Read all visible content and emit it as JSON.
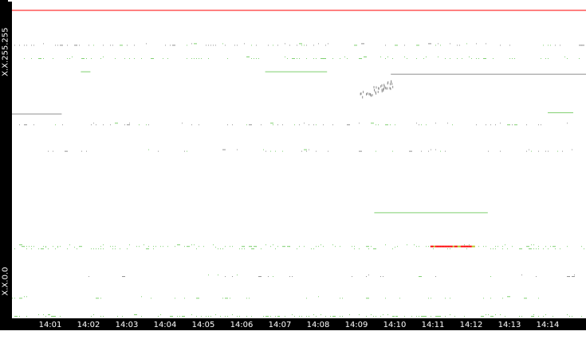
{
  "chart_data": {
    "type": "scatter",
    "title": "",
    "xlabel": "",
    "ylabel": "",
    "x_range": [
      "14:00:00",
      "14:15:00"
    ],
    "x_ticks": [
      "14:01",
      "14:02",
      "14:03",
      "14:04",
      "14:05",
      "14:06",
      "14:07",
      "14:08",
      "14:09",
      "14:10",
      "14:11",
      "14:12",
      "14:13",
      "14:14"
    ],
    "y_range_labels": {
      "top": "X.X.255.255",
      "bottom": "X.X.0.0"
    },
    "y_range": [
      0,
      255
    ],
    "grid": false,
    "colors": {
      "low": "#7fcf6f",
      "medium": "#b8c020",
      "high": "#ff0000",
      "other": "#909090",
      "background": "#ffffff",
      "axis": "#000000"
    },
    "segments": [
      {
        "y": 255,
        "start": "14:00:00",
        "end": "14:15:00",
        "level": "high"
      },
      {
        "y": 204,
        "start": "14:06:37",
        "end": "14:08:14",
        "level": "low"
      },
      {
        "y": 204,
        "start": "14:01:48",
        "end": "14:02:03",
        "level": "low"
      },
      {
        "y": 202,
        "start": "14:09:54",
        "end": "14:15:00",
        "level": "other"
      },
      {
        "y": 169,
        "start": "14:00:00",
        "end": "14:01:18",
        "level": "other"
      },
      {
        "y": 170,
        "start": "14:14:00",
        "end": "14:14:40",
        "level": "low"
      },
      {
        "y": 87,
        "start": "14:09:28",
        "end": "14:12:26",
        "level": "low"
      },
      {
        "y": 59,
        "start": "14:10:56",
        "end": "14:12:05",
        "level": "high"
      }
    ],
    "dot_rows": [
      {
        "y": 226,
        "density": 0.35,
        "level": "other"
      },
      {
        "y": 215,
        "density": 0.3,
        "level": "low"
      },
      {
        "y": 160,
        "density": 0.25,
        "level": "other"
      },
      {
        "y": 138,
        "density": 0.15,
        "level": "other"
      },
      {
        "y": 59,
        "density": 0.45,
        "level": "low"
      },
      {
        "y": 57,
        "density": 0.25,
        "level": "low"
      },
      {
        "y": 34,
        "density": 0.1,
        "level": "other"
      },
      {
        "y": 16,
        "density": 0.15,
        "level": "low"
      },
      {
        "y": 1,
        "density": 0.5,
        "level": "low"
      }
    ],
    "cluster": {
      "start": "14:09:05",
      "end": "14:09:58",
      "y_from": 182,
      "y_to": 198,
      "level": "other"
    }
  }
}
